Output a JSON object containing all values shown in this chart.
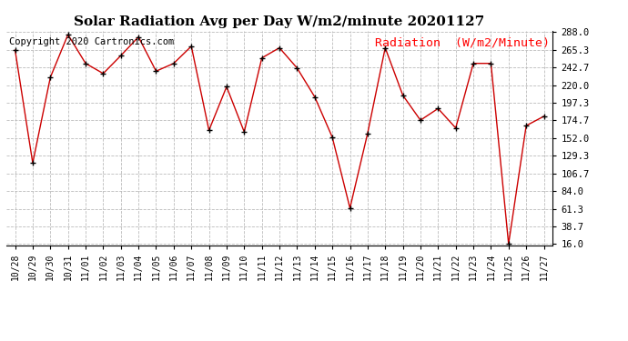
{
  "title": "Solar Radiation Avg per Day W/m2/minute 20201127",
  "copyright": "Copyright 2020 Cartronics.com",
  "legend_label": "Radiation  (W/m2/Minute)",
  "dates": [
    "10/28",
    "10/29",
    "10/30",
    "10/31",
    "11/01",
    "11/02",
    "11/03",
    "11/04",
    "11/05",
    "11/06",
    "11/07",
    "11/08",
    "11/09",
    "11/10",
    "11/11",
    "11/12",
    "11/13",
    "11/14",
    "11/15",
    "11/16",
    "11/17",
    "11/18",
    "11/19",
    "11/20",
    "11/21",
    "11/22",
    "11/23",
    "11/24",
    "11/25",
    "11/26",
    "11/27"
  ],
  "values": [
    265.0,
    120.0,
    230.0,
    285.0,
    248.0,
    235.0,
    258.0,
    282.0,
    238.0,
    248.0,
    270.0,
    162.0,
    218.0,
    160.0,
    255.0,
    268.0,
    242.0,
    205.0,
    153.0,
    62.0,
    158.0,
    268.0,
    207.0,
    175.0,
    190.0,
    165.0,
    248.0,
    248.0,
    16.0,
    168.0,
    180.0
  ],
  "line_color": "#cc0000",
  "marker_color": "#000000",
  "bg_color": "#ffffff",
  "grid_color": "#bbbbbb",
  "title_fontsize": 11,
  "copyright_fontsize": 7.5,
  "legend_fontsize": 9.5,
  "yticks": [
    16.0,
    38.7,
    61.3,
    84.0,
    106.7,
    129.3,
    152.0,
    174.7,
    197.3,
    220.0,
    242.7,
    265.3,
    288.0
  ],
  "ymin": 16.0,
  "ymax": 288.0
}
